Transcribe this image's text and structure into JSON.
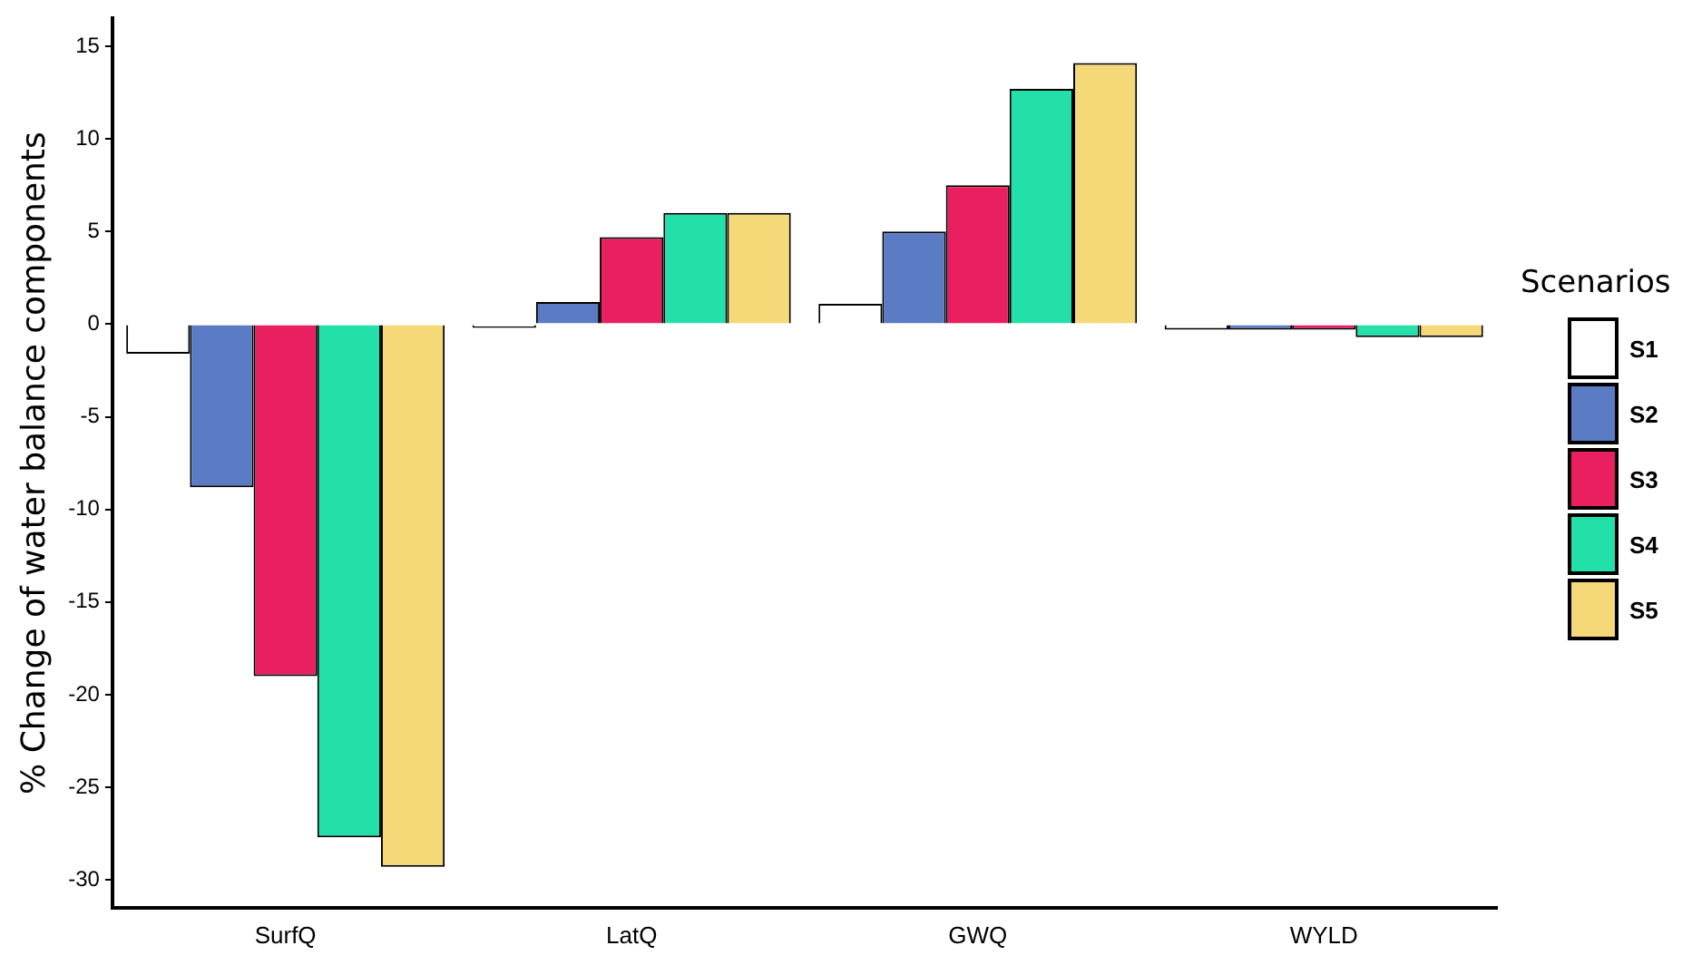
{
  "chart_data": {
    "type": "bar",
    "ylabel": "% Change of water balance components",
    "legend_title": "Scenarios",
    "legend": "right",
    "grid": false,
    "categories": [
      "SurfQ",
      "LatQ",
      "GWQ",
      "WYLD"
    ],
    "series": [
      {
        "name": "S1",
        "color": "#ffffff",
        "values": [
          -1.6,
          -0.2,
          1.1,
          -0.3
        ]
      },
      {
        "name": "S2",
        "color": "#5b7cc4",
        "values": [
          -8.8,
          1.2,
          5,
          -0.3
        ]
      },
      {
        "name": "S3",
        "color": "#ea1f5f",
        "values": [
          -19,
          4.7,
          7.5,
          -0.3
        ]
      },
      {
        "name": "S4",
        "color": "#22e0a8",
        "values": [
          -27.7,
          6,
          12.7,
          -0.7
        ]
      },
      {
        "name": "S5",
        "color": "#f5d878",
        "values": [
          -29.3,
          6,
          14.1,
          -0.7
        ]
      }
    ],
    "ylim": [
      -31.5,
      16.5
    ],
    "yticks": [
      -30,
      -25,
      -20,
      -15,
      -10,
      -5,
      0,
      5,
      10,
      15
    ]
  }
}
